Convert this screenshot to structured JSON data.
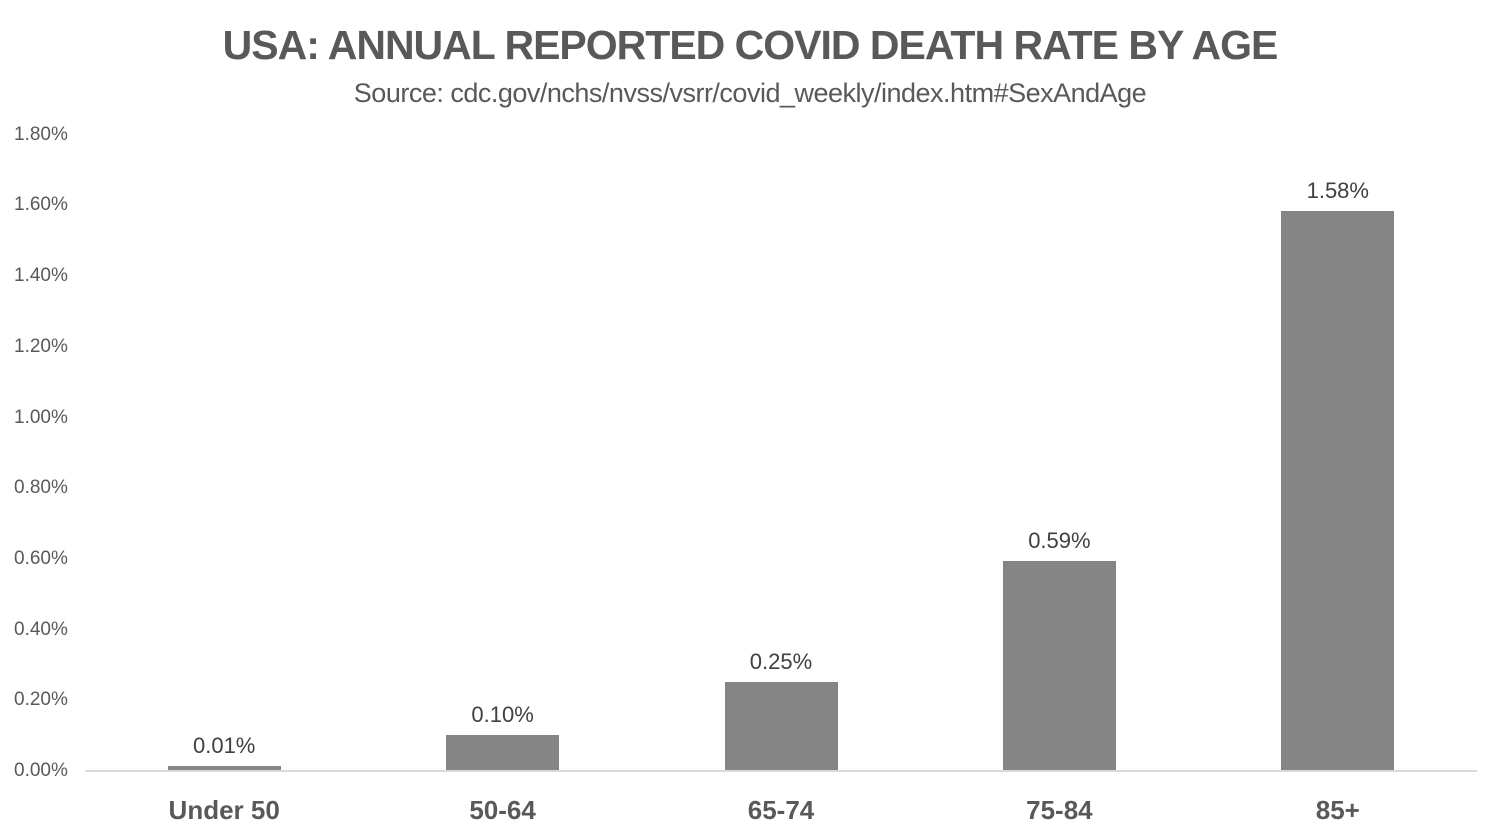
{
  "chart_data": {
    "type": "bar",
    "title": "USA: ANNUAL REPORTED COVID DEATH RATE BY AGE",
    "subtitle": "Source: cdc.gov/nchs/nvss/vsrr/covid_weekly/index.htm#SexAndAge",
    "categories": [
      "Under 50",
      "50-64",
      "65-74",
      "75-84",
      "85+"
    ],
    "values": [
      0.01,
      0.1,
      0.25,
      0.59,
      1.58
    ],
    "data_labels": [
      "0.01%",
      "0.10%",
      "0.25%",
      "0.59%",
      "1.58%"
    ],
    "xlabel": "",
    "ylabel": "",
    "ylim": [
      0,
      1.8
    ],
    "y_tick_step": 0.2,
    "y_tick_labels": [
      "0.00%",
      "0.20%",
      "0.40%",
      "0.60%",
      "0.80%",
      "1.00%",
      "1.20%",
      "1.40%",
      "1.60%",
      "1.80%"
    ],
    "grid": false,
    "legend": false,
    "colors": {
      "bar_fill": "#858585",
      "axis_line": "#d9d9d9",
      "title_text": "#595959",
      "tick_text": "#595959",
      "category_text": "#595959",
      "data_label_text": "#404040",
      "background": "#ffffff"
    }
  }
}
